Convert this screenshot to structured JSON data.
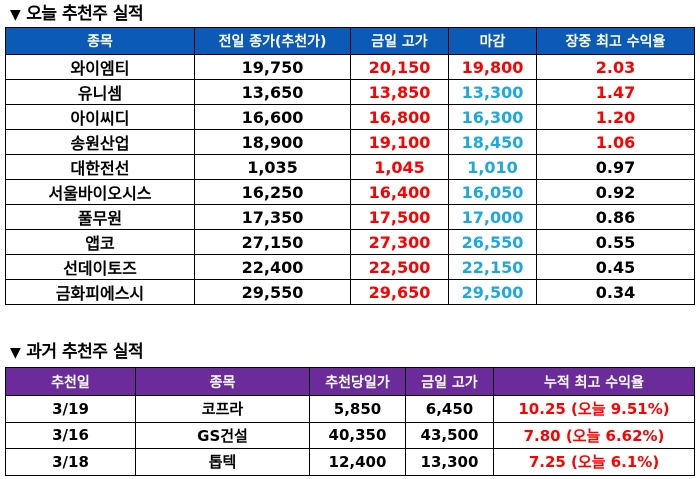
{
  "section1": {
    "marker": "▼",
    "title": "오늘 추천주 실적",
    "headers": [
      "종목",
      "전일 종가(추천가)",
      "금일 고가",
      "마감",
      "장중 최고 수익율"
    ],
    "rows": [
      {
        "name": "와이엠티",
        "prev_close": "19,750",
        "high": "20,150",
        "close": "19,800",
        "max_return": "2.03",
        "high_color": "red",
        "close_color": "red",
        "ret_color": "red"
      },
      {
        "name": "유니셈",
        "prev_close": "13,650",
        "high": "13,850",
        "close": "13,300",
        "max_return": "1.47",
        "high_color": "red",
        "close_color": "blue",
        "ret_color": "red"
      },
      {
        "name": "아이씨디",
        "prev_close": "16,600",
        "high": "16,800",
        "close": "16,300",
        "max_return": "1.20",
        "high_color": "red",
        "close_color": "blue",
        "ret_color": "red"
      },
      {
        "name": "송원산업",
        "prev_close": "18,900",
        "high": "19,100",
        "close": "18,450",
        "max_return": "1.06",
        "high_color": "red",
        "close_color": "blue",
        "ret_color": "red"
      },
      {
        "name": "대한전선",
        "prev_close": "1,035",
        "high": "1,045",
        "close": "1,010",
        "max_return": "0.97",
        "high_color": "red",
        "close_color": "blue",
        "ret_color": "black"
      },
      {
        "name": "서울바이오시스",
        "prev_close": "16,250",
        "high": "16,400",
        "close": "16,050",
        "max_return": "0.92",
        "high_color": "red",
        "close_color": "blue",
        "ret_color": "black"
      },
      {
        "name": "풀무원",
        "prev_close": "17,350",
        "high": "17,500",
        "close": "17,000",
        "max_return": "0.86",
        "high_color": "red",
        "close_color": "blue",
        "ret_color": "black"
      },
      {
        "name": "앱코",
        "prev_close": "27,150",
        "high": "27,300",
        "close": "26,550",
        "max_return": "0.55",
        "high_color": "red",
        "close_color": "blue",
        "ret_color": "black"
      },
      {
        "name": "선데이토즈",
        "prev_close": "22,400",
        "high": "22,500",
        "close": "22,150",
        "max_return": "0.45",
        "high_color": "red",
        "close_color": "blue",
        "ret_color": "black"
      },
      {
        "name": "금화피에스시",
        "prev_close": "29,550",
        "high": "29,650",
        "close": "29,500",
        "max_return": "0.34",
        "high_color": "red",
        "close_color": "blue",
        "ret_color": "black"
      }
    ]
  },
  "section2": {
    "marker": "▼",
    "title": "과거 추천주 실적",
    "headers": [
      "추천일",
      "종목",
      "추천당일가",
      "금일 고가",
      "누적 최고 수익율"
    ],
    "rows": [
      {
        "date": "3/19",
        "name": "코프라",
        "rec_price": "5,850",
        "high": "6,450",
        "cum_return": "10.25 (오늘 9.51%)"
      },
      {
        "date": "3/16",
        "name": "GS건설",
        "rec_price": "40,350",
        "high": "43,500",
        "cum_return": "7.80 (오늘 6.62%)"
      },
      {
        "date": "3/18",
        "name": "톱텍",
        "rec_price": "12,400",
        "high": "13,300",
        "cum_return": "7.25 (오늘 6.1%)"
      }
    ]
  },
  "colors": {
    "header1_bg": "#0b5bb6",
    "header2_bg": "#6b2b9a",
    "up": "#ff0000",
    "down": "#1ea8e0"
  }
}
